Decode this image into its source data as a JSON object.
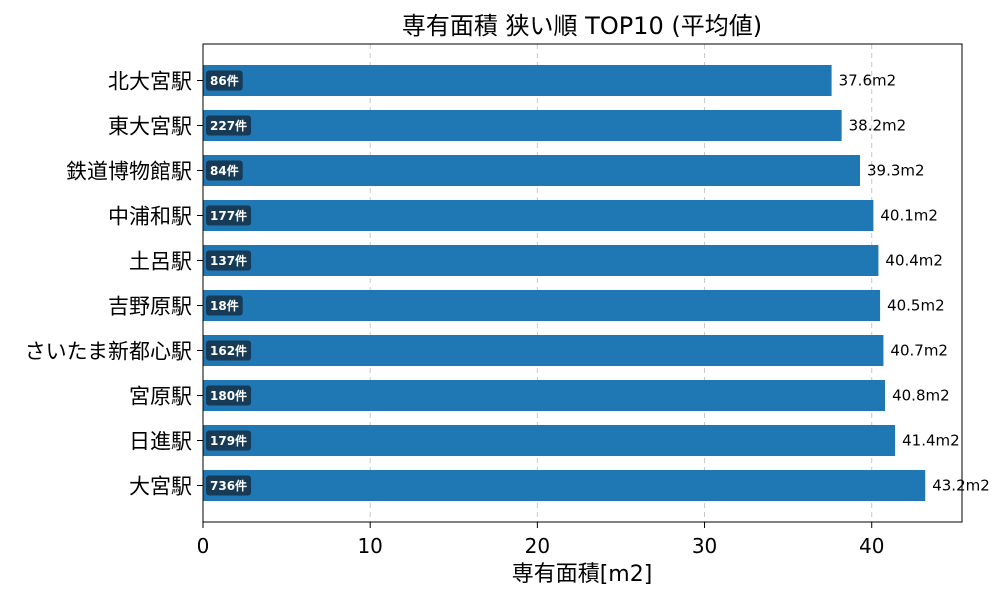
{
  "chart_data": {
    "type": "bar",
    "orientation": "horizontal",
    "title": "専有面積 狭い順 TOP10 (平均値)",
    "xlabel": "専有面積[m2]",
    "ylabel": "",
    "xlim": [
      0,
      45.4
    ],
    "xticks": [
      0,
      10,
      20,
      30,
      40
    ],
    "grid": {
      "x": true,
      "style": "dashed"
    },
    "bar_color": "#1f77b4",
    "count_badge_color": "#173a57",
    "categories": [
      "北大宮駅",
      "東大宮駅",
      "鉄道博物館駅",
      "中浦和駅",
      "土呂駅",
      "吉野原駅",
      "さいたま新都心駅",
      "宮原駅",
      "日進駅",
      "大宮駅"
    ],
    "values": [
      37.6,
      38.2,
      39.3,
      40.1,
      40.4,
      40.5,
      40.7,
      40.8,
      41.4,
      43.2
    ],
    "value_labels": [
      "37.6m2",
      "38.2m2",
      "39.3m2",
      "40.1m2",
      "40.4m2",
      "40.5m2",
      "40.7m2",
      "40.8m2",
      "41.4m2",
      "43.2m2"
    ],
    "counts": [
      "86件",
      "227件",
      "84件",
      "177件",
      "137件",
      "18件",
      "162件",
      "180件",
      "179件",
      "736件"
    ]
  }
}
